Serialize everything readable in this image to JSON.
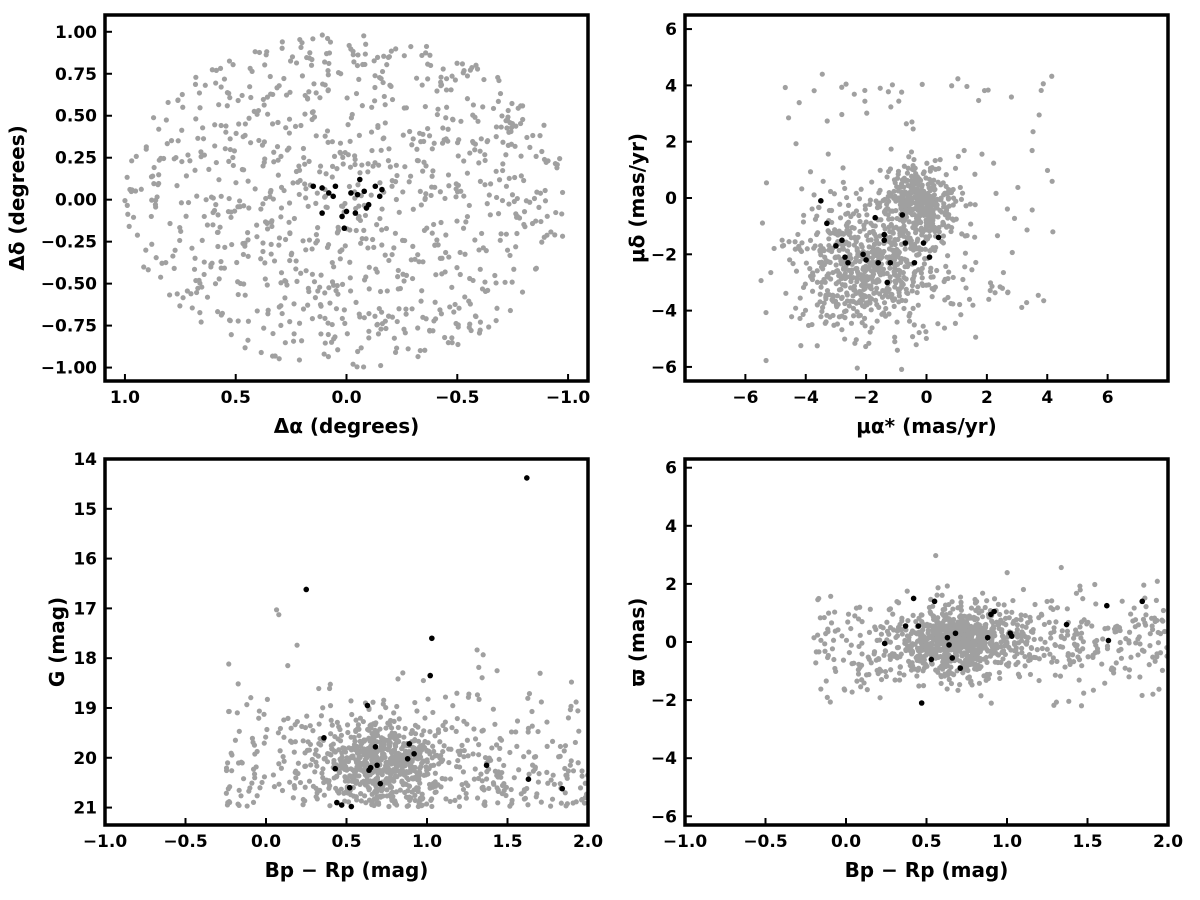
{
  "colors": {
    "field_stars": "#a0a0a0",
    "members": "#000000",
    "axes": "#000000"
  },
  "chart_data": [
    {
      "type": "scatter",
      "xlabel": "Δα (degrees)",
      "ylabel": "Δδ (degrees)",
      "xlim": [
        1.09,
        -1.09
      ],
      "ylim": [
        -1.08,
        1.1
      ],
      "xticks": [
        1.0,
        0.5,
        0.0,
        -0.5,
        -1.0
      ],
      "xtick_labels": [
        "1.0",
        "0.5",
        "0.0",
        "−0.5",
        "−1.0"
      ],
      "yticks": [
        -1.0,
        -0.75,
        -0.5,
        -0.25,
        0.0,
        0.25,
        0.5,
        0.75,
        1.0
      ],
      "ytick_labels": [
        "−1.00",
        "−0.75",
        "−0.50",
        "−0.25",
        "0.00",
        "0.25",
        "0.50",
        "0.75",
        "1.00"
      ],
      "grid": false,
      "field_stars": {
        "distribution": "uniform_disk",
        "count": 950,
        "center": [
          0,
          0
        ],
        "radius": 1.0
      },
      "members": {
        "x": [
          0.15,
          0.11,
          0.08,
          0.06,
          0.05,
          -0.02,
          -0.05,
          -0.06,
          -0.08,
          0.0,
          0.02,
          0.01,
          -0.1,
          -0.09,
          -0.15,
          -0.16,
          -0.13,
          0.11,
          -0.04
        ],
        "y": [
          0.08,
          0.07,
          0.04,
          0.02,
          0.08,
          0.04,
          0.03,
          0.12,
          0.05,
          -0.07,
          -0.1,
          -0.17,
          -0.03,
          -0.05,
          0.02,
          0.06,
          0.08,
          -0.08,
          -0.08
        ]
      }
    },
    {
      "type": "scatter",
      "xlabel": "μα* (mas/yr)",
      "ylabel": "μδ (mas/yr)",
      "xlim": [
        -8,
        8
      ],
      "ylim": [
        -6.5,
        6.5
      ],
      "xticks": [
        -6,
        -4,
        -2,
        0,
        2,
        4,
        6
      ],
      "xtick_labels": [
        "−6",
        "−4",
        "−2",
        "0",
        "2",
        "4",
        "6"
      ],
      "yticks": [
        -6,
        -4,
        -2,
        0,
        2,
        4,
        6
      ],
      "ytick_labels": [
        "−6",
        "−4",
        "−2",
        "0",
        "2",
        "4",
        "6"
      ],
      "grid": false,
      "field_stars": {
        "distribution": "two_clumps",
        "count": 1150,
        "clumps": [
          {
            "center": [
              -0.2,
              -0.1
            ],
            "sigma": [
              0.6,
              0.6
            ],
            "weight": 0.35
          },
          {
            "center": [
              -1.8,
              -2.4
            ],
            "sigma": [
              1.2,
              1.2
            ],
            "weight": 0.65
          }
        ]
      },
      "members": {
        "x": [
          -3.5,
          -3.3,
          -2.8,
          -3.0,
          -2.7,
          -2.6,
          -2.1,
          -2.0,
          -1.7,
          -1.6,
          -1.2,
          -0.7,
          -1.4,
          -0.4,
          -0.1,
          0.1,
          0.4,
          -1.4,
          -0.8,
          -1.3
        ],
        "y": [
          -0.1,
          -0.9,
          -1.5,
          -1.7,
          -2.1,
          -2.3,
          -2.0,
          -2.2,
          -0.7,
          -2.3,
          -2.3,
          -1.6,
          -1.3,
          -2.3,
          -1.6,
          -2.1,
          -1.4,
          -1.5,
          -0.6,
          -3.0
        ]
      }
    },
    {
      "type": "scatter",
      "xlabel": "Bp − Rp (mag)",
      "ylabel": "G (mag)",
      "xlim": [
        -1.0,
        2.0
      ],
      "ylim": [
        21.35,
        14.0
      ],
      "xticks": [
        -1.0,
        -0.5,
        0.0,
        0.5,
        1.0,
        1.5,
        2.0
      ],
      "xtick_labels": [
        "−1.0",
        "−0.5",
        "0.0",
        "0.5",
        "1.0",
        "1.5",
        "2.0"
      ],
      "yticks": [
        14,
        15,
        16,
        17,
        18,
        19,
        20,
        21
      ],
      "ytick_labels": [
        "14",
        "15",
        "16",
        "17",
        "18",
        "19",
        "20",
        "21"
      ],
      "grid": false,
      "field_stars": {
        "distribution": "cmd_clump",
        "count": 1000,
        "core": [
          0.7,
          20.1
        ],
        "xrange": [
          -0.25,
          2.0
        ],
        "yrange": [
          15.0,
          21.0
        ]
      },
      "members": {
        "x": [
          0.25,
          0.44,
          0.47,
          0.52,
          0.53,
          0.63,
          0.64,
          0.65,
          0.68,
          0.69,
          0.71,
          0.88,
          0.89,
          0.92,
          1.02,
          1.03,
          0.36,
          0.43,
          1.37,
          1.62,
          1.63,
          1.84
        ],
        "y": [
          16.62,
          20.9,
          20.95,
          20.6,
          20.98,
          18.95,
          20.25,
          20.2,
          19.78,
          20.15,
          20.52,
          20.02,
          19.72,
          19.92,
          18.35,
          17.6,
          19.6,
          20.22,
          20.15,
          14.38,
          20.43,
          20.62
        ]
      }
    },
    {
      "type": "scatter",
      "xlabel": "Bp − Rp (mag)",
      "ylabel": "ϖ (mas)",
      "xlim": [
        -1.0,
        2.0
      ],
      "ylim": [
        -6.3,
        6.3
      ],
      "xticks": [
        -1.0,
        -0.5,
        0.0,
        0.5,
        1.0,
        1.5,
        2.0
      ],
      "xtick_labels": [
        "−1.0",
        "−0.5",
        "0.0",
        "0.5",
        "1.0",
        "1.5",
        "2.0"
      ],
      "yticks": [
        -6,
        -4,
        -2,
        0,
        2,
        4,
        6
      ],
      "ytick_labels": [
        "−6",
        "−4",
        "−2",
        "0",
        "2",
        "4",
        "6"
      ],
      "grid": false,
      "field_stars": {
        "distribution": "band",
        "count": 1100,
        "core": [
          0.7,
          0.0
        ],
        "xrange": [
          -0.2,
          2.0
        ]
      },
      "members": {
        "x": [
          0.24,
          0.37,
          0.42,
          0.45,
          0.47,
          0.53,
          0.55,
          0.63,
          0.64,
          0.66,
          0.68,
          0.71,
          0.88,
          0.9,
          0.92,
          1.02,
          1.03,
          1.37,
          1.62,
          1.63,
          1.84
        ],
        "y": [
          -0.05,
          0.55,
          1.5,
          0.55,
          -2.1,
          -0.6,
          1.4,
          0.15,
          -0.1,
          -0.55,
          0.3,
          -0.9,
          0.15,
          0.95,
          1.05,
          0.3,
          0.2,
          0.6,
          1.25,
          0.05,
          1.4
        ]
      }
    }
  ]
}
